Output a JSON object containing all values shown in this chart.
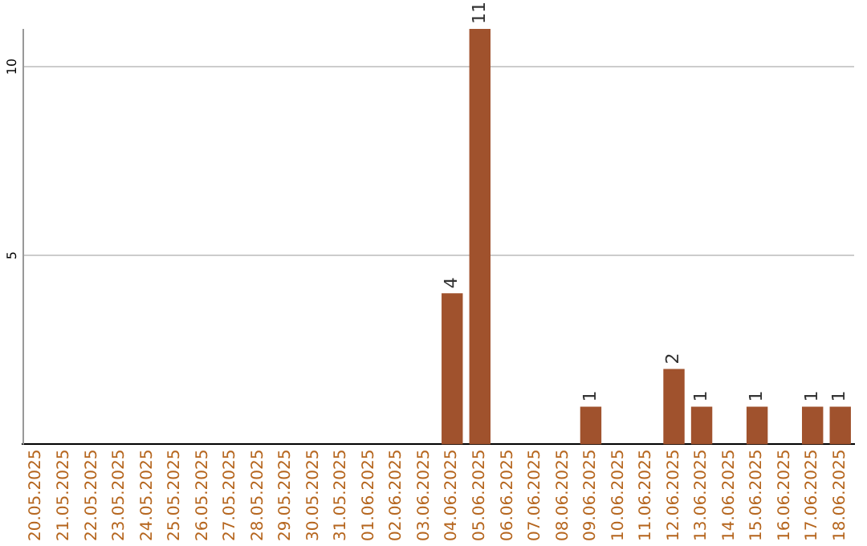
{
  "chart_data": {
    "type": "bar",
    "categories": [
      "20.05.2025",
      "21.05.2025",
      "22.05.2025",
      "23.05.2025",
      "24.05.2025",
      "25.05.2025",
      "26.05.2025",
      "27.05.2025",
      "28.05.2025",
      "29.05.2025",
      "30.05.2025",
      "31.05.2025",
      "01.06.2025",
      "02.06.2025",
      "03.06.2025",
      "04.06.2025",
      "05.06.2025",
      "06.06.2025",
      "07.06.2025",
      "08.06.2025",
      "09.06.2025",
      "10.06.2025",
      "11.06.2025",
      "12.06.2025",
      "13.06.2025",
      "14.06.2025",
      "15.06.2025",
      "16.06.2025",
      "17.06.2025",
      "18.06.2025"
    ],
    "values": [
      0,
      0,
      0,
      0,
      0,
      0,
      0,
      0,
      0,
      0,
      0,
      0,
      0,
      0,
      0,
      4,
      11,
      0,
      0,
      0,
      1,
      0,
      0,
      2,
      1,
      0,
      1,
      0,
      1,
      1
    ],
    "value_labels": [
      null,
      null,
      null,
      null,
      null,
      null,
      null,
      null,
      null,
      null,
      null,
      null,
      null,
      null,
      null,
      "4",
      "11",
      null,
      null,
      null,
      "1",
      null,
      null,
      "2",
      "1",
      null,
      "1",
      null,
      "1",
      "1"
    ],
    "color": "#a0522d",
    "ylim": [
      0,
      11
    ],
    "yticks": [
      5,
      10
    ],
    "grid": "y",
    "legend": false
  }
}
